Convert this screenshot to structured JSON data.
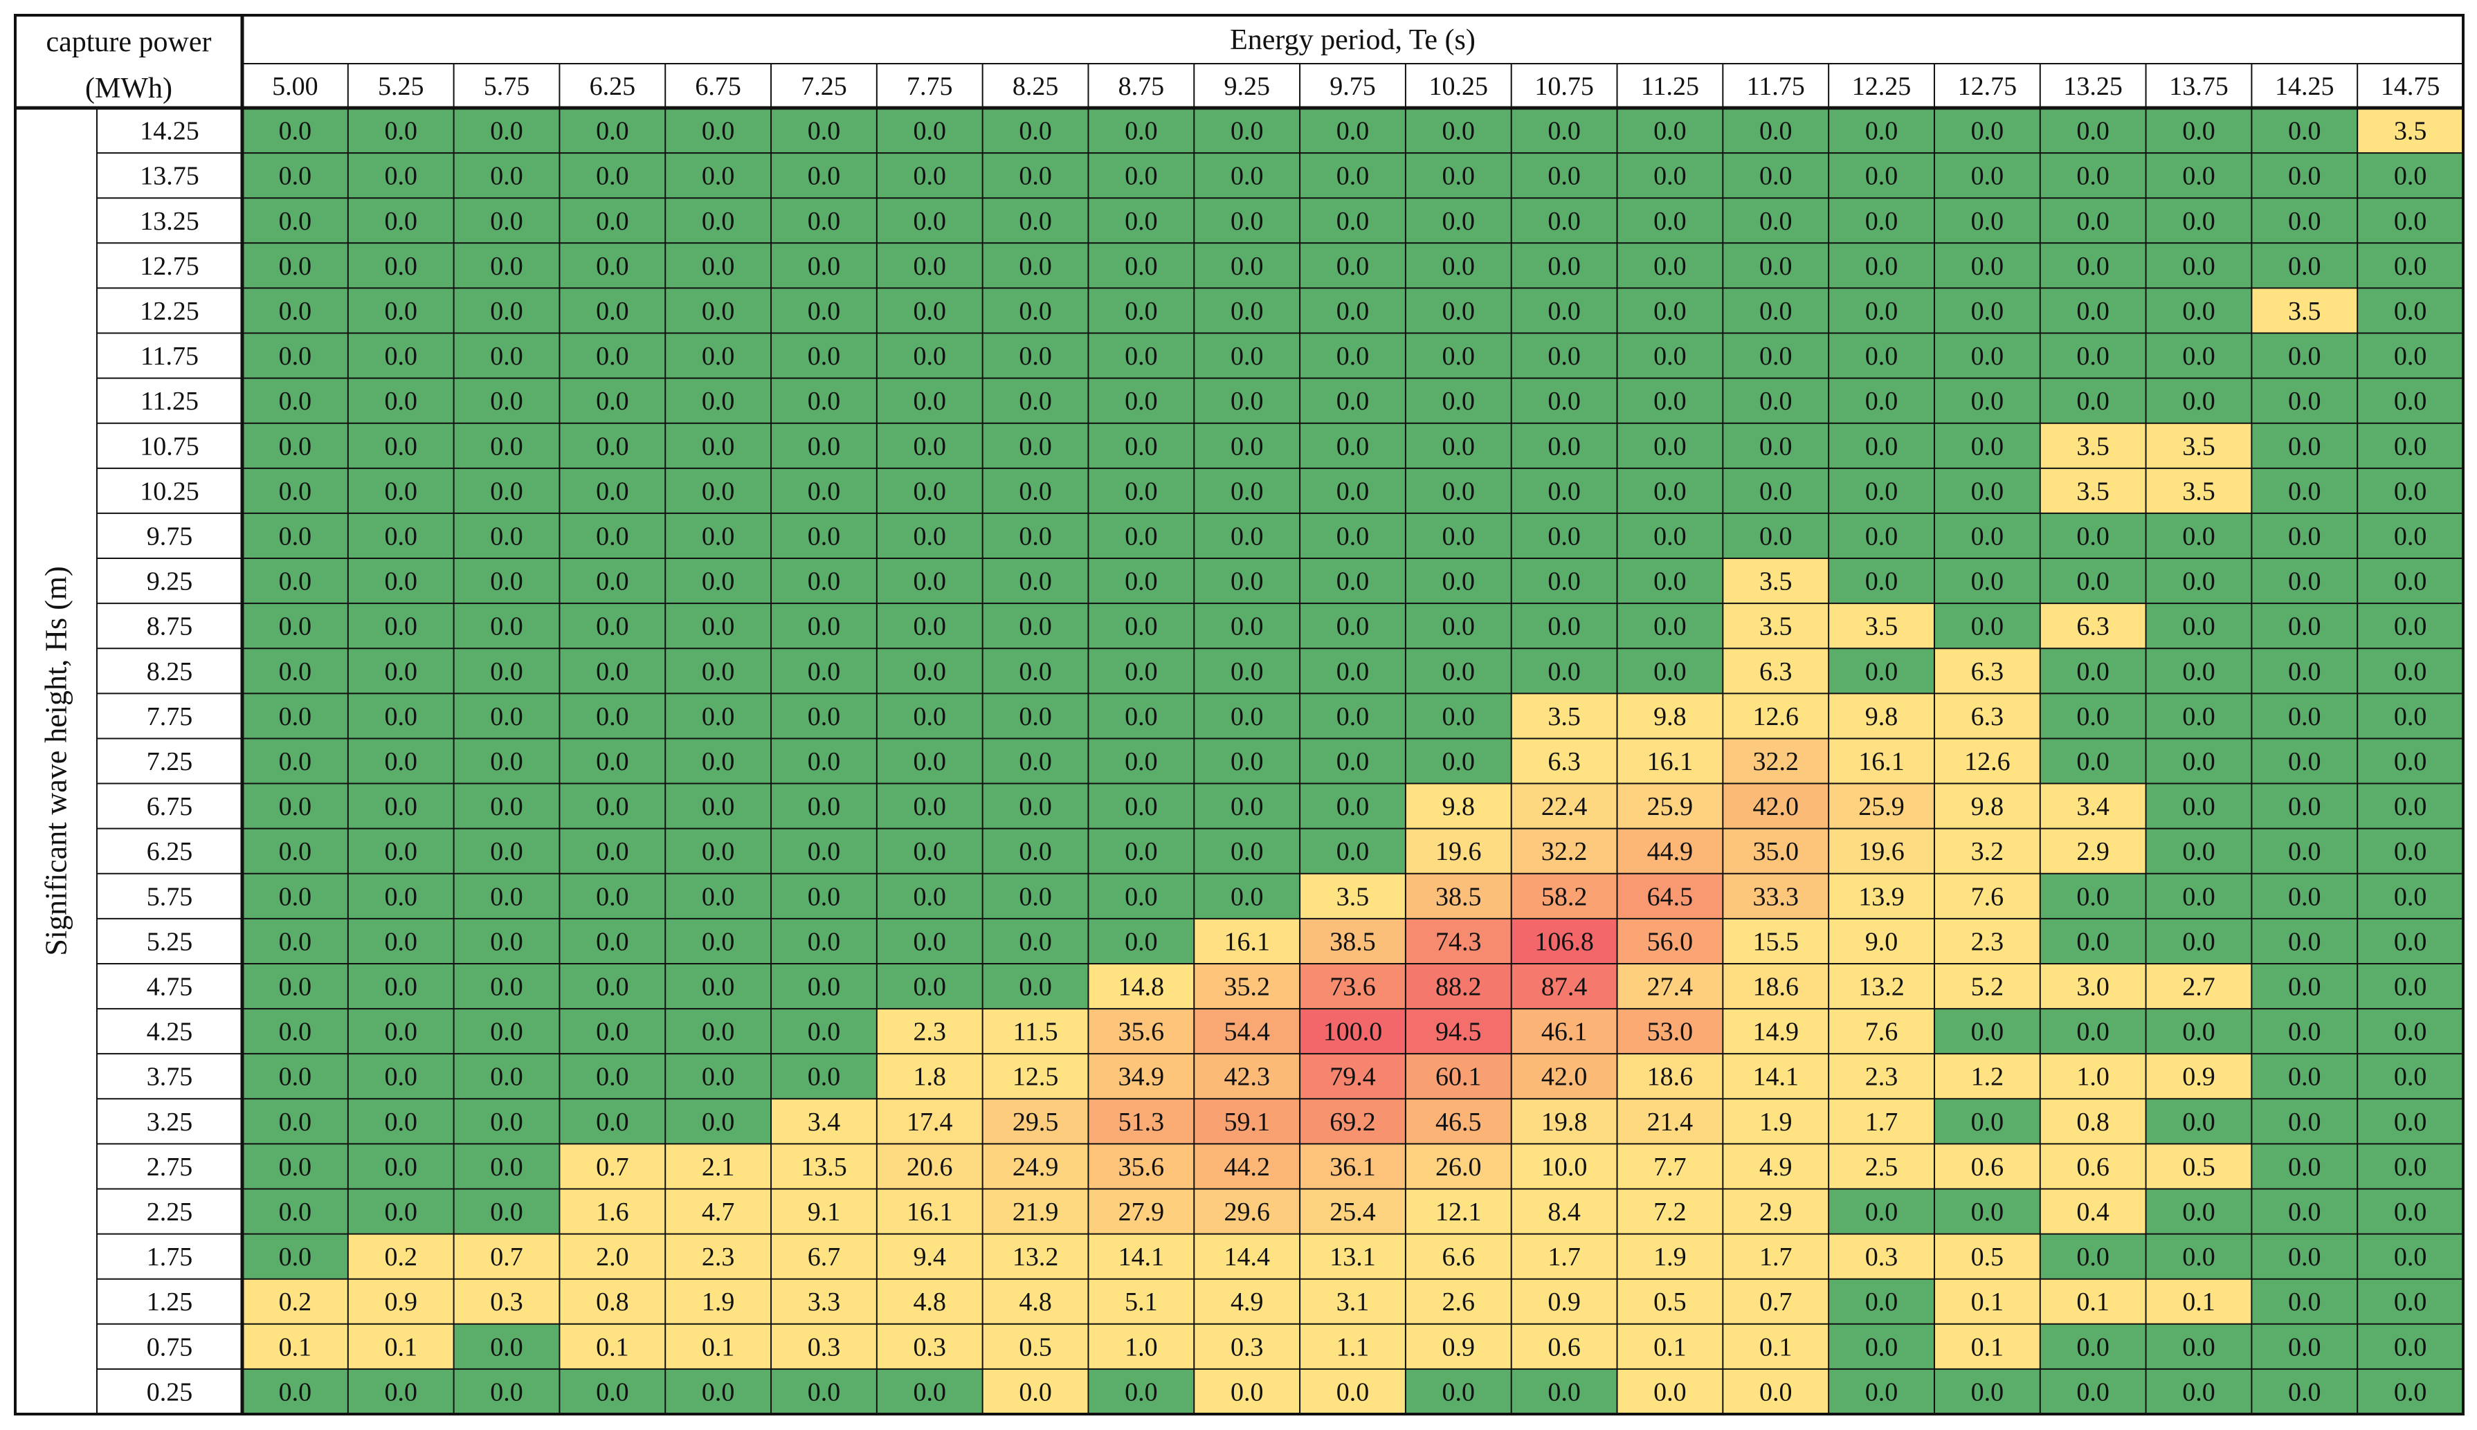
{
  "chart_data": {
    "type": "heatmap",
    "corner_label": [
      "capture power",
      "(MWh)"
    ],
    "xlabel": "Energy period, Te (s)",
    "ylabel": "Significant wave height, Hs (m)",
    "x_ticks": [
      "5.00",
      "5.25",
      "5.75",
      "6.25",
      "6.75",
      "7.25",
      "7.75",
      "8.25",
      "8.75",
      "9.25",
      "9.75",
      "10.25",
      "10.75",
      "11.25",
      "11.75",
      "12.25",
      "12.75",
      "13.25",
      "13.75",
      "14.25",
      "14.75"
    ],
    "y_ticks": [
      "14.25",
      "13.75",
      "13.25",
      "12.75",
      "12.25",
      "11.75",
      "11.25",
      "10.75",
      "10.25",
      "9.75",
      "9.25",
      "8.75",
      "8.25",
      "7.75",
      "7.25",
      "6.75",
      "6.25",
      "5.75",
      "5.25",
      "4.75",
      "4.25",
      "3.75",
      "3.25",
      "2.75",
      "2.25",
      "1.75",
      "1.25",
      "0.75",
      "0.25"
    ],
    "values": [
      [
        "0.0",
        "0.0",
        "0.0",
        "0.0",
        "0.0",
        "0.0",
        "0.0",
        "0.0",
        "0.0",
        "0.0",
        "0.0",
        "0.0",
        "0.0",
        "0.0",
        "0.0",
        "0.0",
        "0.0",
        "0.0",
        "0.0",
        "0.0",
        "3.5"
      ],
      [
        "0.0",
        "0.0",
        "0.0",
        "0.0",
        "0.0",
        "0.0",
        "0.0",
        "0.0",
        "0.0",
        "0.0",
        "0.0",
        "0.0",
        "0.0",
        "0.0",
        "0.0",
        "0.0",
        "0.0",
        "0.0",
        "0.0",
        "0.0",
        "0.0"
      ],
      [
        "0.0",
        "0.0",
        "0.0",
        "0.0",
        "0.0",
        "0.0",
        "0.0",
        "0.0",
        "0.0",
        "0.0",
        "0.0",
        "0.0",
        "0.0",
        "0.0",
        "0.0",
        "0.0",
        "0.0",
        "0.0",
        "0.0",
        "0.0",
        "0.0"
      ],
      [
        "0.0",
        "0.0",
        "0.0",
        "0.0",
        "0.0",
        "0.0",
        "0.0",
        "0.0",
        "0.0",
        "0.0",
        "0.0",
        "0.0",
        "0.0",
        "0.0",
        "0.0",
        "0.0",
        "0.0",
        "0.0",
        "0.0",
        "0.0",
        "0.0"
      ],
      [
        "0.0",
        "0.0",
        "0.0",
        "0.0",
        "0.0",
        "0.0",
        "0.0",
        "0.0",
        "0.0",
        "0.0",
        "0.0",
        "0.0",
        "0.0",
        "0.0",
        "0.0",
        "0.0",
        "0.0",
        "0.0",
        "0.0",
        "3.5",
        "0.0"
      ],
      [
        "0.0",
        "0.0",
        "0.0",
        "0.0",
        "0.0",
        "0.0",
        "0.0",
        "0.0",
        "0.0",
        "0.0",
        "0.0",
        "0.0",
        "0.0",
        "0.0",
        "0.0",
        "0.0",
        "0.0",
        "0.0",
        "0.0",
        "0.0",
        "0.0"
      ],
      [
        "0.0",
        "0.0",
        "0.0",
        "0.0",
        "0.0",
        "0.0",
        "0.0",
        "0.0",
        "0.0",
        "0.0",
        "0.0",
        "0.0",
        "0.0",
        "0.0",
        "0.0",
        "0.0",
        "0.0",
        "0.0",
        "0.0",
        "0.0",
        "0.0"
      ],
      [
        "0.0",
        "0.0",
        "0.0",
        "0.0",
        "0.0",
        "0.0",
        "0.0",
        "0.0",
        "0.0",
        "0.0",
        "0.0",
        "0.0",
        "0.0",
        "0.0",
        "0.0",
        "0.0",
        "0.0",
        "3.5",
        "3.5",
        "0.0",
        "0.0"
      ],
      [
        "0.0",
        "0.0",
        "0.0",
        "0.0",
        "0.0",
        "0.0",
        "0.0",
        "0.0",
        "0.0",
        "0.0",
        "0.0",
        "0.0",
        "0.0",
        "0.0",
        "0.0",
        "0.0",
        "0.0",
        "3.5",
        "3.5",
        "0.0",
        "0.0"
      ],
      [
        "0.0",
        "0.0",
        "0.0",
        "0.0",
        "0.0",
        "0.0",
        "0.0",
        "0.0",
        "0.0",
        "0.0",
        "0.0",
        "0.0",
        "0.0",
        "0.0",
        "0.0",
        "0.0",
        "0.0",
        "0.0",
        "0.0",
        "0.0",
        "0.0"
      ],
      [
        "0.0",
        "0.0",
        "0.0",
        "0.0",
        "0.0",
        "0.0",
        "0.0",
        "0.0",
        "0.0",
        "0.0",
        "0.0",
        "0.0",
        "0.0",
        "0.0",
        "3.5",
        "0.0",
        "0.0",
        "0.0",
        "0.0",
        "0.0",
        "0.0"
      ],
      [
        "0.0",
        "0.0",
        "0.0",
        "0.0",
        "0.0",
        "0.0",
        "0.0",
        "0.0",
        "0.0",
        "0.0",
        "0.0",
        "0.0",
        "0.0",
        "0.0",
        "3.5",
        "3.5",
        "0.0",
        "6.3",
        "0.0",
        "0.0",
        "0.0"
      ],
      [
        "0.0",
        "0.0",
        "0.0",
        "0.0",
        "0.0",
        "0.0",
        "0.0",
        "0.0",
        "0.0",
        "0.0",
        "0.0",
        "0.0",
        "0.0",
        "0.0",
        "6.3",
        "0.0",
        "6.3",
        "0.0",
        "0.0",
        "0.0",
        "0.0"
      ],
      [
        "0.0",
        "0.0",
        "0.0",
        "0.0",
        "0.0",
        "0.0",
        "0.0",
        "0.0",
        "0.0",
        "0.0",
        "0.0",
        "0.0",
        "3.5",
        "9.8",
        "12.6",
        "9.8",
        "6.3",
        "0.0",
        "0.0",
        "0.0",
        "0.0"
      ],
      [
        "0.0",
        "0.0",
        "0.0",
        "0.0",
        "0.0",
        "0.0",
        "0.0",
        "0.0",
        "0.0",
        "0.0",
        "0.0",
        "0.0",
        "6.3",
        "16.1",
        "32.2",
        "16.1",
        "12.6",
        "0.0",
        "0.0",
        "0.0",
        "0.0"
      ],
      [
        "0.0",
        "0.0",
        "0.0",
        "0.0",
        "0.0",
        "0.0",
        "0.0",
        "0.0",
        "0.0",
        "0.0",
        "0.0",
        "9.8",
        "22.4",
        "25.9",
        "42.0",
        "25.9",
        "9.8",
        "3.4",
        "0.0",
        "0.0",
        "0.0"
      ],
      [
        "0.0",
        "0.0",
        "0.0",
        "0.0",
        "0.0",
        "0.0",
        "0.0",
        "0.0",
        "0.0",
        "0.0",
        "0.0",
        "19.6",
        "32.2",
        "44.9",
        "35.0",
        "19.6",
        "3.2",
        "2.9",
        "0.0",
        "0.0",
        "0.0"
      ],
      [
        "0.0",
        "0.0",
        "0.0",
        "0.0",
        "0.0",
        "0.0",
        "0.0",
        "0.0",
        "0.0",
        "0.0",
        "3.5",
        "38.5",
        "58.2",
        "64.5",
        "33.3",
        "13.9",
        "7.6",
        "0.0",
        "0.0",
        "0.0",
        "0.0"
      ],
      [
        "0.0",
        "0.0",
        "0.0",
        "0.0",
        "0.0",
        "0.0",
        "0.0",
        "0.0",
        "0.0",
        "16.1",
        "38.5",
        "74.3",
        "106.8",
        "56.0",
        "15.5",
        "9.0",
        "2.3",
        "0.0",
        "0.0",
        "0.0",
        "0.0"
      ],
      [
        "0.0",
        "0.0",
        "0.0",
        "0.0",
        "0.0",
        "0.0",
        "0.0",
        "0.0",
        "14.8",
        "35.2",
        "73.6",
        "88.2",
        "87.4",
        "27.4",
        "18.6",
        "13.2",
        "5.2",
        "3.0",
        "2.7",
        "0.0",
        "0.0"
      ],
      [
        "0.0",
        "0.0",
        "0.0",
        "0.0",
        "0.0",
        "0.0",
        "2.3",
        "11.5",
        "35.6",
        "54.4",
        "100.0",
        "94.5",
        "46.1",
        "53.0",
        "14.9",
        "7.6",
        "0.0",
        "0.0",
        "0.0",
        "0.0",
        "0.0"
      ],
      [
        "0.0",
        "0.0",
        "0.0",
        "0.0",
        "0.0",
        "0.0",
        "1.8",
        "12.5",
        "34.9",
        "42.3",
        "79.4",
        "60.1",
        "42.0",
        "18.6",
        "14.1",
        "2.3",
        "1.2",
        "1.0",
        "0.9",
        "0.0",
        "0.0"
      ],
      [
        "0.0",
        "0.0",
        "0.0",
        "0.0",
        "0.0",
        "3.4",
        "17.4",
        "29.5",
        "51.3",
        "59.1",
        "69.2",
        "46.5",
        "19.8",
        "21.4",
        "1.9",
        "1.7",
        "0.0",
        "0.8",
        "0.0",
        "0.0",
        "0.0"
      ],
      [
        "0.0",
        "0.0",
        "0.0",
        "0.7",
        "2.1",
        "13.5",
        "20.6",
        "24.9",
        "35.6",
        "44.2",
        "36.1",
        "26.0",
        "10.0",
        "7.7",
        "4.9",
        "2.5",
        "0.6",
        "0.6",
        "0.5",
        "0.0",
        "0.0"
      ],
      [
        "0.0",
        "0.0",
        "0.0",
        "1.6",
        "4.7",
        "9.1",
        "16.1",
        "21.9",
        "27.9",
        "29.6",
        "25.4",
        "12.1",
        "8.4",
        "7.2",
        "2.9",
        "0.0",
        "0.0",
        "0.4",
        "0.0",
        "0.0",
        "0.0"
      ],
      [
        "0.0",
        "0.2",
        "0.7",
        "2.0",
        "2.3",
        "6.7",
        "9.4",
        "13.2",
        "14.1",
        "14.4",
        "13.1",
        "6.6",
        "1.7",
        "1.9",
        "1.7",
        "0.3",
        "0.5",
        "0.0",
        "0.0",
        "0.0",
        "0.0"
      ],
      [
        "0.2",
        "0.9",
        "0.3",
        "0.8",
        "1.9",
        "3.3",
        "4.8",
        "4.8",
        "5.1",
        "4.9",
        "3.1",
        "2.6",
        "0.9",
        "0.5",
        "0.7",
        "0.0",
        "0.1",
        "0.1",
        "0.1",
        "0.0",
        "0.0"
      ],
      [
        "0.1",
        "0.1",
        "0.0",
        "0.1",
        "0.1",
        "0.3",
        "0.3",
        "0.5",
        "1.0",
        "0.3",
        "1.1",
        "0.9",
        "0.6",
        "0.1",
        "0.1",
        "0.0",
        "0.1",
        "0.0",
        "0.0",
        "0.0",
        "0.0"
      ],
      [
        "0.0",
        "0.0",
        "0.0",
        "0.0",
        "0.0",
        "0.0",
        "0.0",
        "0.0",
        "0.0",
        "0.0",
        "0.0",
        "0.0",
        "0.0",
        "0.0",
        "0.0",
        "0.0",
        "0.0",
        "0.0",
        "0.0",
        "0.0",
        "0.0"
      ]
    ],
    "yellow_zero_cells": [
      [
        28,
        7
      ],
      [
        28,
        9
      ],
      [
        28,
        10
      ],
      [
        28,
        13
      ],
      [
        28,
        14
      ]
    ],
    "colors": {
      "zero": "#5aae6a",
      "low": "#ffe383",
      "mid": "#fbae74",
      "high": "#f3676a"
    },
    "grid": true
  }
}
